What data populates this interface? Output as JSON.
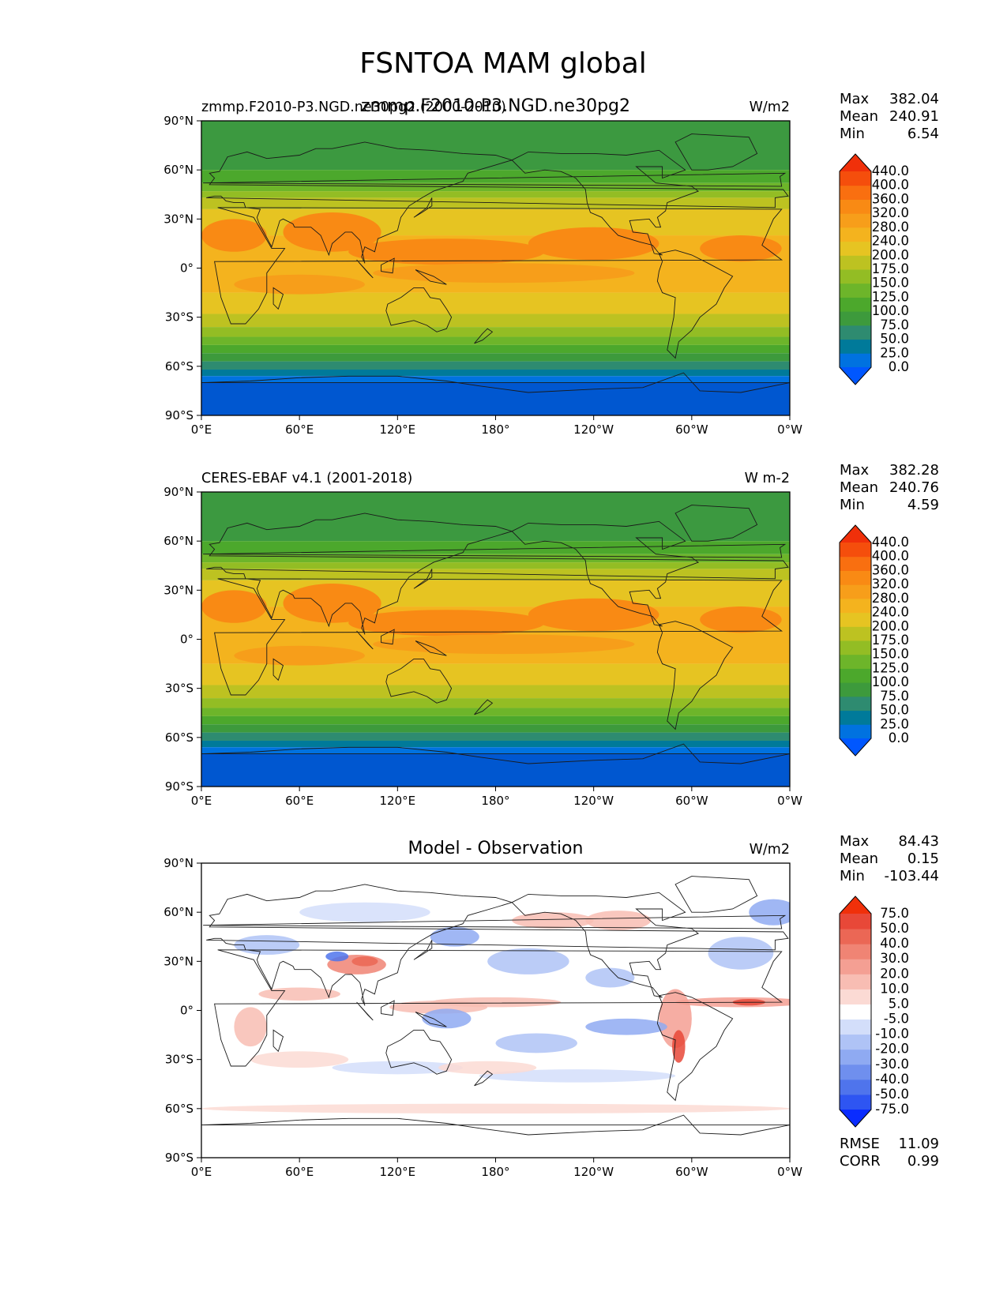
{
  "figure": {
    "title": "FSNTOA MAM global"
  },
  "chart_data": [
    {
      "type": "heatmap",
      "panel": "test",
      "left_title": "zmmp.F2010-P3.NGD.ne30pg2 (2000-2010)",
      "center_title": "zmmp.F2010-P3.NGD.ne30pg2",
      "units": "W/m2",
      "stats": {
        "max_label": "Max",
        "max": "382.04",
        "mean_label": "Mean",
        "mean": "240.91",
        "min_label": "Min",
        "min": "6.54"
      },
      "colorbar": {
        "levels": [
          "0.0",
          "25.0",
          "50.0",
          "75.0",
          "100.0",
          "125.0",
          "150.0",
          "175.0",
          "200.0",
          "240.0",
          "280.0",
          "320.0",
          "360.0",
          "400.0",
          "440.0"
        ],
        "colors": [
          "#0057FF",
          "#0072E0",
          "#007A9A",
          "#2E8B70",
          "#3D9A3C",
          "#4CA82C",
          "#6DB52A",
          "#93BD24",
          "#BDC221",
          "#E6C422",
          "#F4B31E",
          "#F79E1A",
          "#F98A14",
          "#F96F10",
          "#F54E0C",
          "#F0300A"
        ]
      },
      "field_kind": "abs"
    },
    {
      "type": "heatmap",
      "panel": "reference",
      "left_title": "CERES-EBAF v4.1 (2001-2018)",
      "center_title": "",
      "units": "W m-2",
      "stats": {
        "max_label": "Max",
        "max": "382.28",
        "mean_label": "Mean",
        "mean": "240.76",
        "min_label": "Min",
        "min": "4.59"
      },
      "colorbar": {
        "levels": [
          "0.0",
          "25.0",
          "50.0",
          "75.0",
          "100.0",
          "125.0",
          "150.0",
          "175.0",
          "200.0",
          "240.0",
          "280.0",
          "320.0",
          "360.0",
          "400.0",
          "440.0"
        ],
        "colors": [
          "#0057FF",
          "#0072E0",
          "#007A9A",
          "#2E8B70",
          "#3D9A3C",
          "#4CA82C",
          "#6DB52A",
          "#93BD24",
          "#BDC221",
          "#E6C422",
          "#F4B31E",
          "#F79E1A",
          "#F98A14",
          "#F96F10",
          "#F54E0C",
          "#F0300A"
        ]
      },
      "field_kind": "abs"
    },
    {
      "type": "heatmap",
      "panel": "difference",
      "left_title": "",
      "center_title": "Model - Observation",
      "units": "W/m2",
      "stats": {
        "max_label": "Max",
        "max": "84.43",
        "mean_label": "Mean",
        "mean": "0.15",
        "min_label": "Min",
        "min": "-103.44"
      },
      "metrics": {
        "rmse_label": "RMSE",
        "rmse": "11.09",
        "corr_label": "CORR",
        "corr": "0.99"
      },
      "colorbar": {
        "levels": [
          "-75.0",
          "-50.0",
          "-40.0",
          "-30.0",
          "-20.0",
          "-10.0",
          "-5.0",
          "5.0",
          "10.0",
          "20.0",
          "30.0",
          "40.0",
          "50.0",
          "75.0"
        ],
        "colors": [
          "#0A2CFF",
          "#2E55F2",
          "#4F74EC",
          "#6F8FEE",
          "#8FAAF2",
          "#AFC3F6",
          "#D3DEFA",
          "#FFFFFF",
          "#FBDAD4",
          "#F8BDB3",
          "#F49F93",
          "#F08474",
          "#EB6755",
          "#E84838",
          "#F0300A"
        ]
      },
      "field_kind": "diff"
    }
  ],
  "axes": {
    "lat_ticks": [
      "90°N",
      "60°N",
      "30°N",
      "0°",
      "30°S",
      "60°S",
      "90°S"
    ],
    "lon_ticks": [
      "0°E",
      "60°E",
      "120°E",
      "180°",
      "120°W",
      "60°W",
      "0°W"
    ]
  },
  "colors": {
    "map_border": "#000000",
    "coast": "#1a1a1a"
  }
}
